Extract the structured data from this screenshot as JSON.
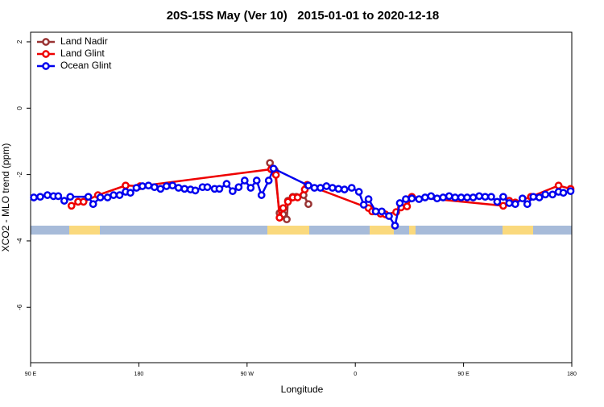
{
  "chart_data": {
    "type": "line",
    "title": "20S-15S May (Ver 10)   2015-01-01 to 2020-12-18",
    "xlabel": "Longitude",
    "ylabel": "XCO2 - MLO trend (ppm)",
    "xlim": [
      90,
      540
    ],
    "ylim": [
      -7.67,
      2.29
    ],
    "xticks": [
      {
        "value": 90,
        "label": "90 E"
      },
      {
        "value": 180,
        "label": "180"
      },
      {
        "value": 270,
        "label": "90 W"
      },
      {
        "value": 360,
        "label": "0"
      },
      {
        "value": 450,
        "label": "90 E"
      },
      {
        "value": 540,
        "label": "180"
      }
    ],
    "yticks": [
      -6,
      -4,
      -2,
      0,
      2
    ],
    "legend": "top-left",
    "series": [
      {
        "name": "Land Nadir",
        "color": "#993333",
        "x": [
          289,
          293,
          297,
          300,
          303,
          304,
          308,
          311,
          317,
          321
        ],
        "values": [
          -1.65,
          -1.87,
          -3.16,
          -3.2,
          -3.35,
          -2.79,
          -2.67,
          -2.67,
          -2.62,
          -2.89
        ]
      },
      {
        "name": "Land Glint",
        "color": "#ee0000",
        "x": [
          124,
          129.5,
          134,
          146,
          169,
          181,
          290,
          294,
          297,
          300,
          304,
          308,
          312,
          318,
          320,
          371,
          374,
          381,
          385,
          394,
          398,
          403,
          407,
          483,
          488,
          493,
          506,
          529,
          539
        ],
        "values": [
          -2.94,
          -2.82,
          -2.82,
          -2.62,
          -2.33,
          -2.35,
          -1.84,
          -2.01,
          -3.3,
          -3.01,
          -2.82,
          -2.69,
          -2.69,
          -2.45,
          -2.31,
          -3.01,
          -3.11,
          -3.18,
          -3.2,
          -3.13,
          -2.99,
          -2.96,
          -2.67,
          -2.94,
          -2.79,
          -2.84,
          -2.67,
          -2.33,
          -2.43
        ]
      },
      {
        "name": "Ocean Glint",
        "color": "#0000ee",
        "x": [
          92.7,
          98,
          104,
          109,
          113,
          118,
          123,
          138,
          142,
          148,
          154,
          159,
          164,
          169,
          173,
          178,
          183,
          188,
          193,
          198,
          203,
          208,
          213,
          218,
          223,
          227,
          233,
          237,
          243,
          247,
          253,
          258,
          263,
          268,
          273,
          278,
          282,
          288,
          292,
          321,
          326,
          331,
          336,
          341,
          346,
          351,
          357,
          363,
          367,
          371,
          377,
          382,
          388,
          393,
          397,
          402,
          407,
          413,
          418,
          423,
          428,
          433,
          438,
          443,
          448,
          453,
          458,
          463,
          468,
          473,
          478,
          483,
          488,
          493,
          499,
          503,
          508,
          513,
          518,
          524,
          529,
          533,
          539
        ],
        "values": [
          -2.69,
          -2.67,
          -2.62,
          -2.65,
          -2.65,
          -2.79,
          -2.67,
          -2.67,
          -2.89,
          -2.69,
          -2.69,
          -2.62,
          -2.62,
          -2.52,
          -2.55,
          -2.4,
          -2.35,
          -2.33,
          -2.38,
          -2.43,
          -2.35,
          -2.33,
          -2.4,
          -2.43,
          -2.45,
          -2.48,
          -2.38,
          -2.38,
          -2.43,
          -2.43,
          -2.28,
          -2.5,
          -2.38,
          -2.18,
          -2.4,
          -2.18,
          -2.62,
          -2.18,
          -1.82,
          -2.33,
          -2.4,
          -2.4,
          -2.35,
          -2.4,
          -2.43,
          -2.45,
          -2.4,
          -2.52,
          -2.91,
          -2.74,
          -3.11,
          -3.11,
          -3.25,
          -3.54,
          -2.86,
          -2.74,
          -2.72,
          -2.74,
          -2.69,
          -2.65,
          -2.72,
          -2.69,
          -2.65,
          -2.69,
          -2.69,
          -2.69,
          -2.69,
          -2.65,
          -2.67,
          -2.67,
          -2.82,
          -2.67,
          -2.86,
          -2.89,
          -2.72,
          -2.89,
          -2.67,
          -2.69,
          -2.6,
          -2.6,
          -2.52,
          -2.55,
          -2.5
        ]
      }
    ]
  }
}
